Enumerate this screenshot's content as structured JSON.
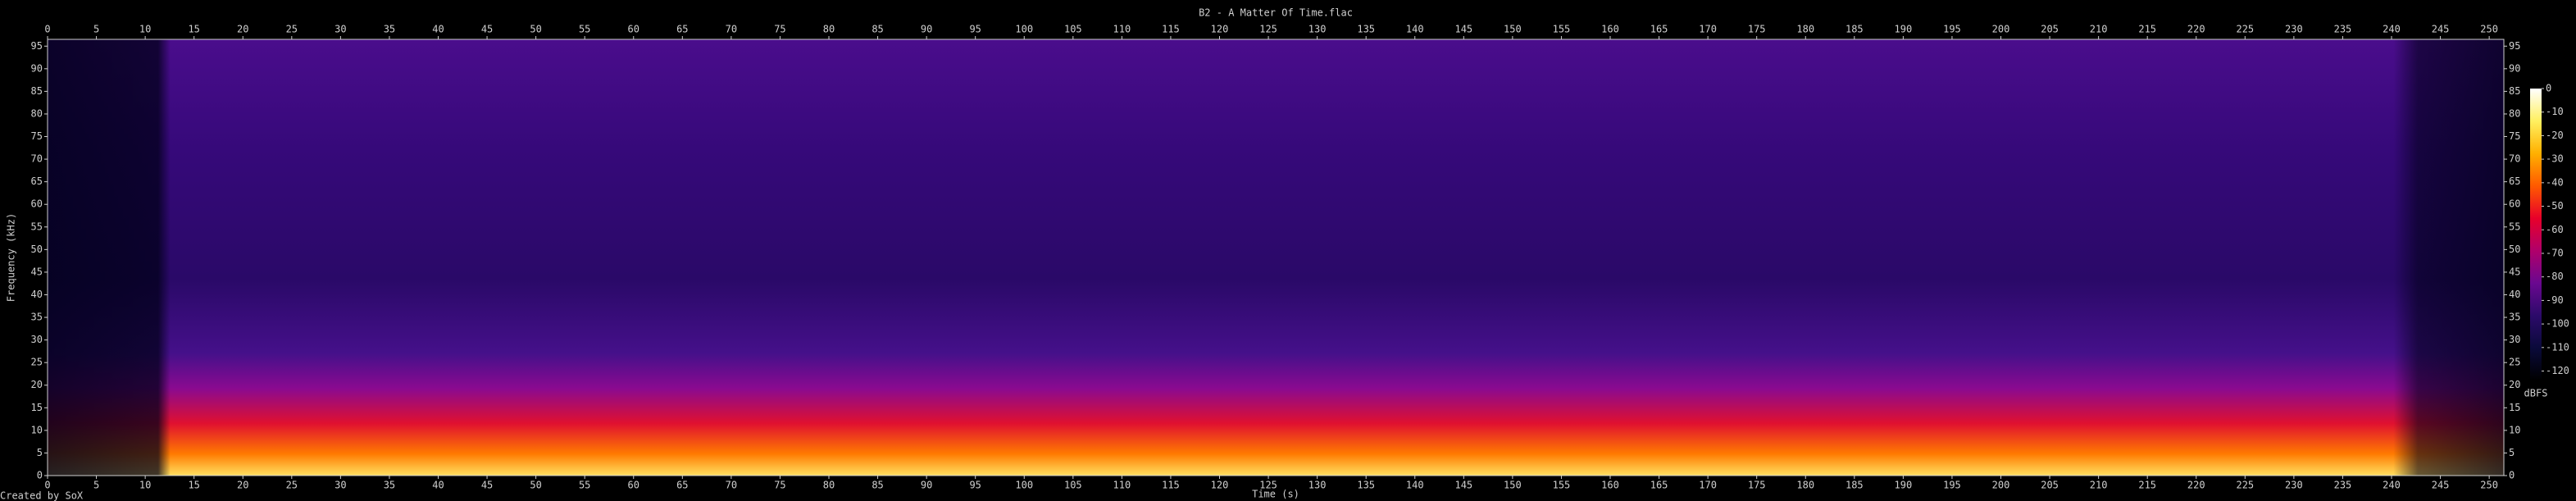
{
  "chart_data": {
    "type": "spectrogram",
    "title": "B2 - A Matter Of Time.flac",
    "x_label": "Time (s)",
    "y_label": "Frequency (kHz)",
    "footer": "Created by SoX",
    "xlim": [
      0,
      251.5
    ],
    "xticks": [
      0,
      5,
      10,
      15,
      20,
      25,
      30,
      35,
      40,
      45,
      50,
      55,
      60,
      65,
      70,
      75,
      80,
      85,
      90,
      95,
      100,
      105,
      110,
      115,
      120,
      125,
      130,
      135,
      140,
      145,
      150,
      155,
      160,
      165,
      170,
      175,
      180,
      185,
      190,
      195,
      200,
      205,
      210,
      215,
      220,
      225,
      230,
      235,
      240,
      245,
      250
    ],
    "ylim": [
      0,
      96.5
    ],
    "yticks": [
      0,
      5,
      10,
      15,
      20,
      25,
      30,
      35,
      40,
      45,
      50,
      55,
      60,
      65,
      70,
      75,
      80,
      85,
      90,
      95
    ],
    "colorbar_label": "dBFS",
    "clim": [
      -124,
      0
    ],
    "cticks": [
      0,
      -10,
      -20,
      -30,
      -40,
      -50,
      -60,
      -70,
      -80,
      -90,
      -100,
      -110,
      -120
    ],
    "colormap": [
      "#ffffff",
      "#fff060",
      "#ffb000",
      "#ff5a00",
      "#e8002a",
      "#b0006a",
      "#6a0890",
      "#2c0a6a",
      "#0a0a3a",
      "#000000"
    ]
  }
}
